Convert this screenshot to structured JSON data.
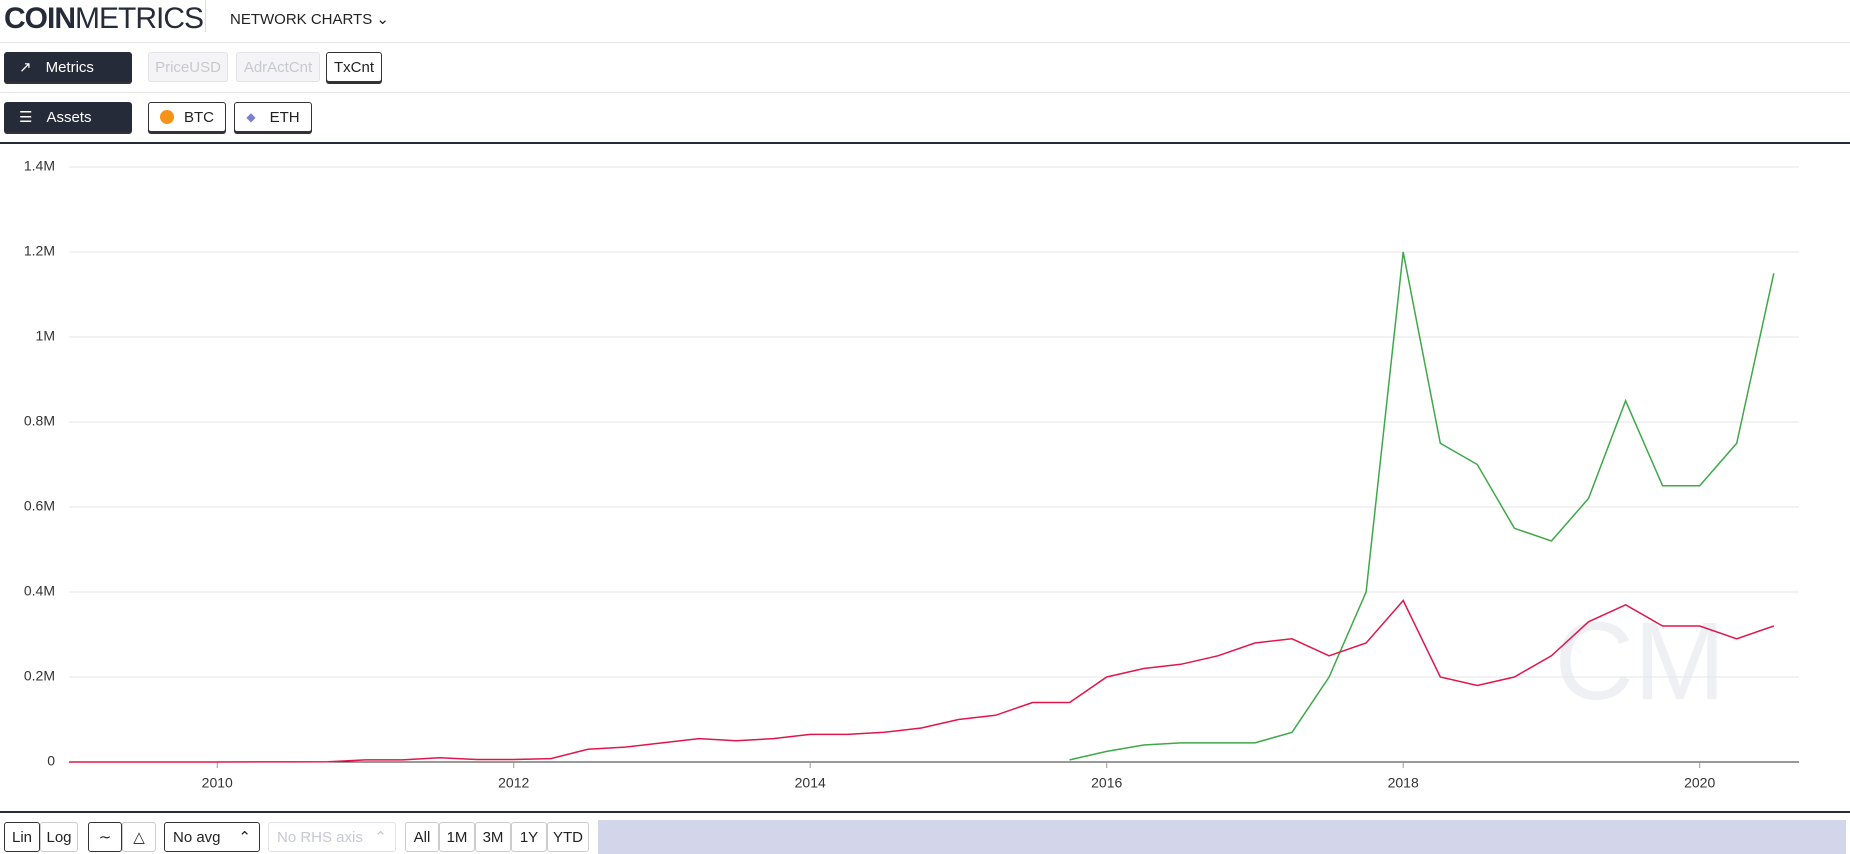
{
  "header": {
    "logo_bold": "COIN",
    "logo_light": "METRICS",
    "menu": "NETWORK CHARTS"
  },
  "metrics": {
    "label": "Metrics",
    "options": [
      "PriceUSD",
      "AdrActCnt",
      "TxCnt"
    ]
  },
  "assets": {
    "label": "Assets"
  },
  "toolbar": {
    "scale": [
      "Lin",
      "Log"
    ],
    "avg": "No avg",
    "rhs": "No RHS axis",
    "ranges": [
      "All",
      "1M",
      "3M",
      "1Y",
      "YTD"
    ]
  },
  "chart_data": {
    "type": "line",
    "x": [
      2009,
      2009.25,
      2009.5,
      2009.75,
      2010,
      2010.25,
      2010.5,
      2010.75,
      2011,
      2011.25,
      2011.5,
      2011.75,
      2012,
      2012.25,
      2012.5,
      2012.75,
      2013,
      2013.25,
      2013.5,
      2013.75,
      2014,
      2014.25,
      2014.5,
      2014.75,
      2015,
      2015.25,
      2015.5,
      2015.75,
      2016,
      2016.25,
      2016.5,
      2016.75,
      2017,
      2017.25,
      2017.5,
      2017.75,
      2018,
      2018.25,
      2018.5,
      2018.75,
      2019,
      2019.25,
      2019.5,
      2019.75,
      2020,
      2020.25,
      2020.5
    ],
    "series": [
      {
        "name": "BTC",
        "color": "#e0174a",
        "values": [
          0,
          0,
          0,
          0,
          100,
          200,
          300,
          500,
          5000,
          5000,
          10000,
          6000,
          6000,
          8000,
          30000,
          35000,
          45000,
          55000,
          50000,
          55000,
          65000,
          65000,
          70000,
          80000,
          100000,
          110000,
          140000,
          140000,
          200000,
          220000,
          230000,
          250000,
          280000,
          290000,
          250000,
          280000,
          380000,
          200000,
          180000,
          200000,
          250000,
          330000,
          370000,
          320000,
          320000,
          290000,
          320000
        ]
      },
      {
        "name": "ETH",
        "color": "#3fa84a",
        "values": [
          null,
          null,
          null,
          null,
          null,
          null,
          null,
          null,
          null,
          null,
          null,
          null,
          null,
          null,
          null,
          null,
          null,
          null,
          null,
          null,
          null,
          null,
          null,
          null,
          null,
          null,
          null,
          5000,
          25000,
          40000,
          45000,
          45000,
          45000,
          70000,
          200000,
          400000,
          1200000,
          750000,
          700000,
          550000,
          520000,
          620000,
          850000,
          650000,
          650000,
          750000,
          1150000
        ]
      }
    ],
    "xlim": [
      2009,
      2020.67
    ],
    "xticks": [
      2010,
      2012,
      2014,
      2016,
      2018,
      2020
    ],
    "ylim": [
      0,
      1400000
    ],
    "yticks": [
      0,
      {
        "value": 200000,
        "label": "0.2M"
      },
      {
        "value": 400000,
        "label": "0.4M"
      },
      {
        "value": 600000,
        "label": "0.6M"
      },
      {
        "value": 800000,
        "label": "0.8M"
      },
      {
        "value": 1000000,
        "label": "1M"
      },
      {
        "value": 1200000,
        "label": "1.2M"
      },
      {
        "value": 1400000,
        "label": "1.4M"
      }
    ],
    "grid": true
  }
}
